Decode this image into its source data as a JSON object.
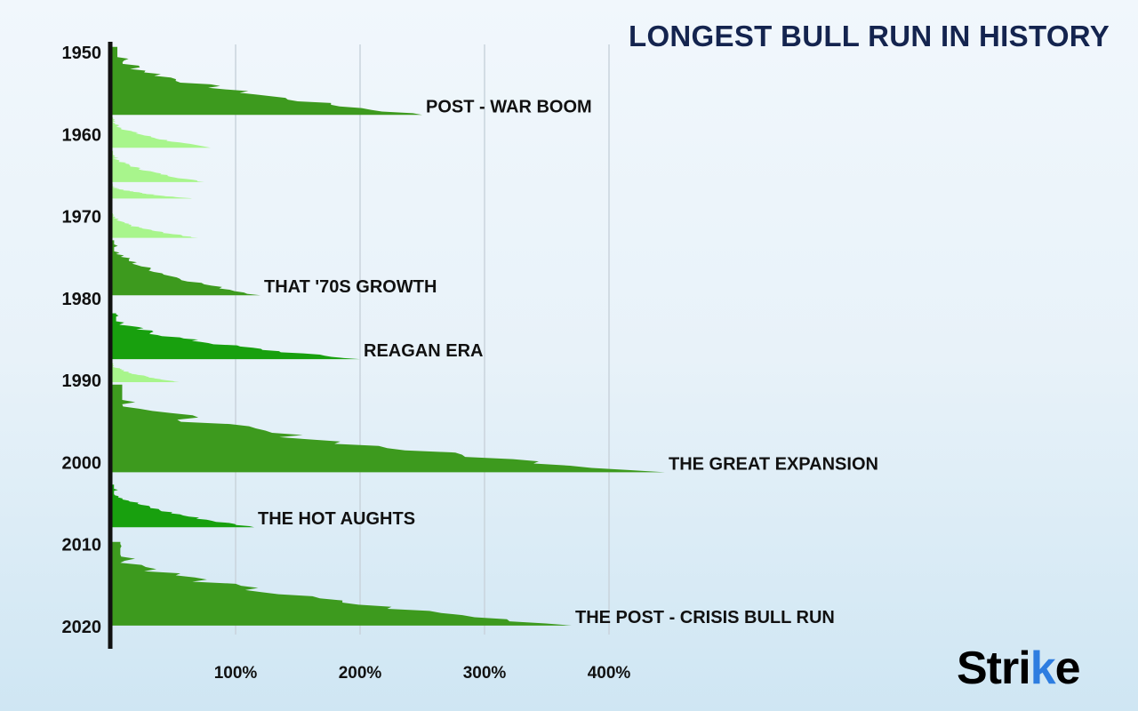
{
  "chart_data": {
    "type": "area",
    "title": "LONGEST BULL RUN IN HISTORY",
    "y_axis": {
      "ticks": [
        "1950",
        "1960",
        "1970",
        "1980",
        "1990",
        "2000",
        "2010",
        "2020"
      ],
      "range": [
        1949,
        2021
      ]
    },
    "x_axis": {
      "ticks": [
        "100%",
        "200%",
        "300%",
        "400%"
      ],
      "range": [
        0,
        500
      ]
    },
    "grid": "vertical",
    "series": [
      {
        "name": "POST - WAR BOOM",
        "start": 1949.3,
        "end": 1957.6,
        "peak": 250,
        "color": "#3d9a1e"
      },
      {
        "name": "",
        "start": 1957.9,
        "end": 1961.6,
        "peak": 80,
        "color": "#a8f58c"
      },
      {
        "name": "",
        "start": 1962.0,
        "end": 1965.8,
        "peak": 75,
        "color": "#a8f58c"
      },
      {
        "name": "",
        "start": 1966.0,
        "end": 1967.8,
        "peak": 65,
        "color": "#a8f58c"
      },
      {
        "name": "",
        "start": 1969.6,
        "end": 1972.6,
        "peak": 70,
        "color": "#a8f58c"
      },
      {
        "name": "THAT '70S GROWTH",
        "start": 1972.9,
        "end": 1979.6,
        "peak": 120,
        "color": "#3d9a1e"
      },
      {
        "name": "REAGAN ERA",
        "start": 1981.8,
        "end": 1987.4,
        "peak": 200,
        "color": "#18a00e"
      },
      {
        "name": "",
        "start": 1987.7,
        "end": 1990.2,
        "peak": 55,
        "color": "#a8f58c"
      },
      {
        "name": "THE GREAT EXPANSION",
        "start": 1990.5,
        "end": 2001.2,
        "peak": 445,
        "color": "#3d9a1e"
      },
      {
        "name": "THE HOT AUGHTS",
        "start": 2002.7,
        "end": 2007.9,
        "peak": 115,
        "color": "#18a00e"
      },
      {
        "name": "THE POST - CRISIS BULL RUN",
        "start": 2009.7,
        "end": 2019.9,
        "peak": 370,
        "color": "#3d9a1e"
      }
    ]
  },
  "brand": {
    "main": "Stri",
    "accent": "k",
    "tail": "e"
  }
}
